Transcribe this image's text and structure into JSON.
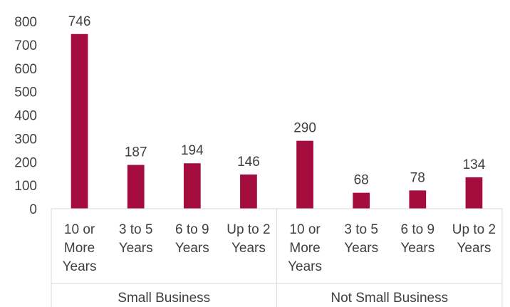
{
  "chart_data": {
    "type": "bar",
    "groups": [
      {
        "name": "Small Business",
        "categories": [
          [
            "10 or",
            "More",
            "Years"
          ],
          [
            "3 to 5",
            "Years"
          ],
          [
            "6 to 9",
            "Years"
          ],
          [
            "Up to 2",
            "Years"
          ]
        ],
        "values": [
          746,
          187,
          194,
          146
        ]
      },
      {
        "name": "Not Small Business",
        "categories": [
          [
            "10 or",
            "More",
            "Years"
          ],
          [
            "3 to 5",
            "Years"
          ],
          [
            "6 to 9",
            "Years"
          ],
          [
            "Up to 2",
            "Years"
          ]
        ],
        "values": [
          290,
          68,
          78,
          134
        ]
      }
    ],
    "yticks": [
      "0",
      "100",
      "200",
      "300",
      "400",
      "500",
      "600",
      "700",
      "800"
    ],
    "ylim": [
      0,
      800
    ],
    "grid": false,
    "legend": "none",
    "bar_color": "#A50D3F",
    "axis_color": "#D9D9D9",
    "text_color": "#404040"
  }
}
